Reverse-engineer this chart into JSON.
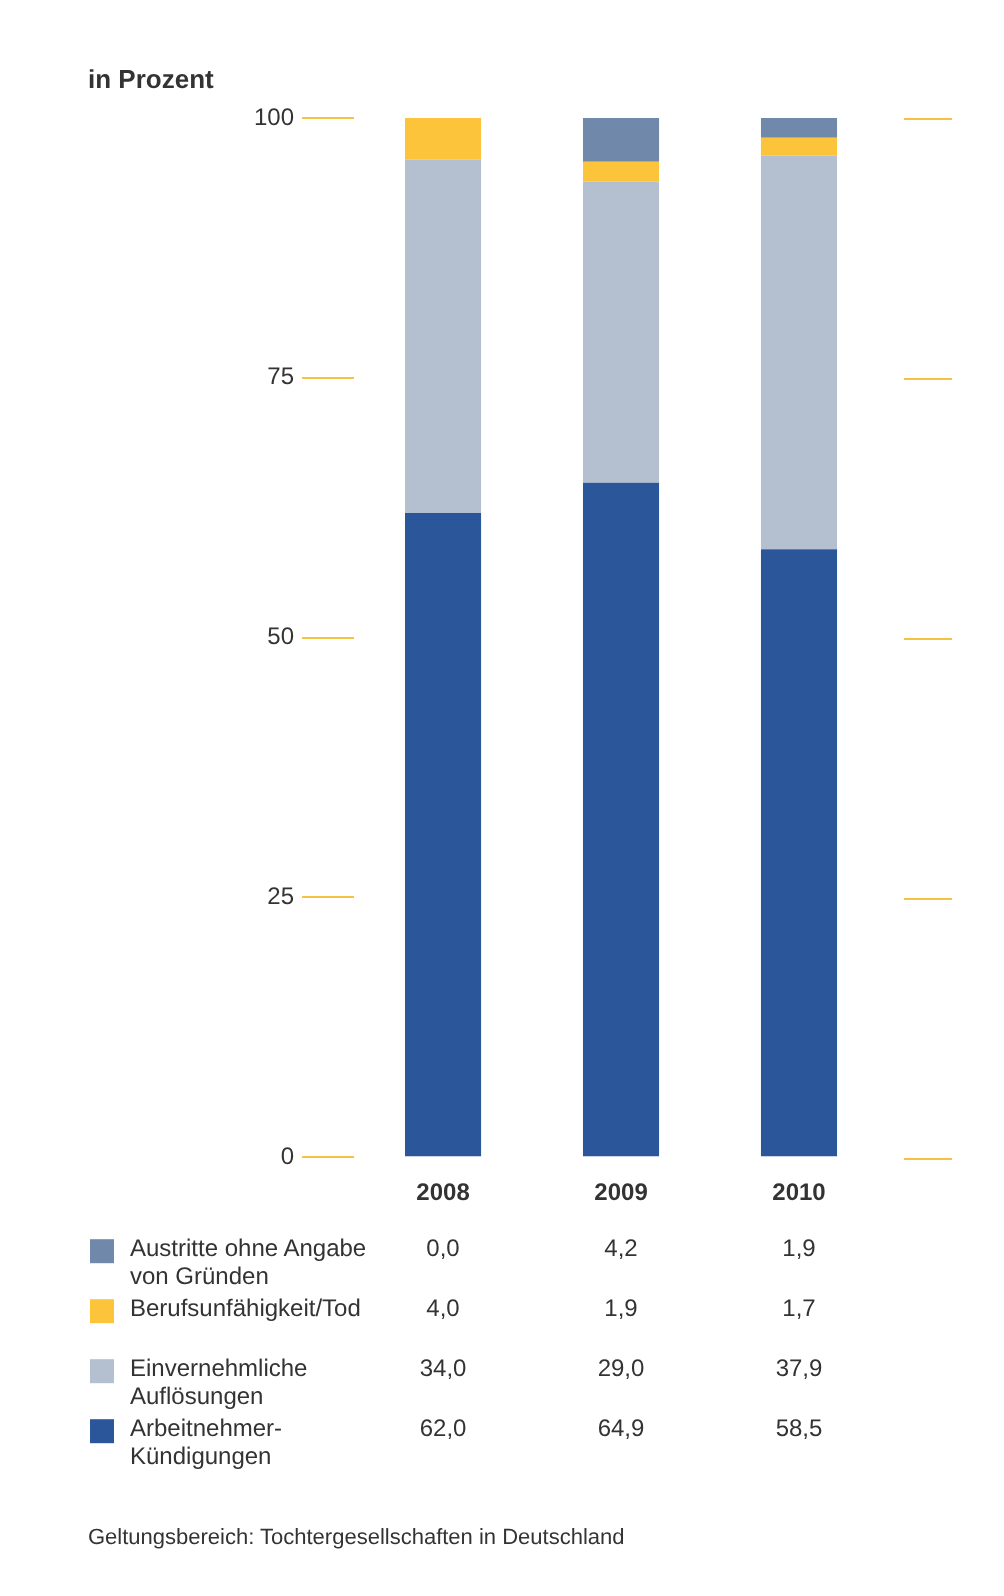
{
  "chart_data": {
    "type": "bar",
    "ylabel": "in Prozent",
    "categories": [
      "2008",
      "2009",
      "2010"
    ],
    "stacked": true,
    "ylim": [
      0,
      100
    ],
    "yticks": [
      0,
      25,
      50,
      75,
      100
    ],
    "grid": false,
    "legend": "bottom",
    "series": [
      {
        "name": "Arbeitnehmer-Kündigungen",
        "color": "#2b579a",
        "values": [
          62.0,
          64.9,
          58.5
        ],
        "value_labels": [
          "62,0",
          "64,9",
          "58,5"
        ]
      },
      {
        "name": "Einvernehmliche Auflösungen",
        "color": "#b4bfcf",
        "values": [
          34.0,
          29.0,
          37.9
        ],
        "value_labels": [
          "34,0",
          "29,0",
          "37,9"
        ]
      },
      {
        "name": "Berufsunfähigkeit/Tod",
        "color": "#fcc43a",
        "values": [
          4.0,
          1.9,
          1.7
        ],
        "value_labels": [
          "4,0",
          "1,9",
          "1,7"
        ]
      },
      {
        "name": "Austritte ohne Angabe von Gründen",
        "color": "#7088aa",
        "values": [
          0.0,
          4.2,
          1.9
        ],
        "value_labels": [
          "0,0",
          "4,2",
          "1,9"
        ]
      }
    ],
    "annotations": [
      "Geltungsbereich: Tochtergesellschaften in Deutschland"
    ]
  }
}
